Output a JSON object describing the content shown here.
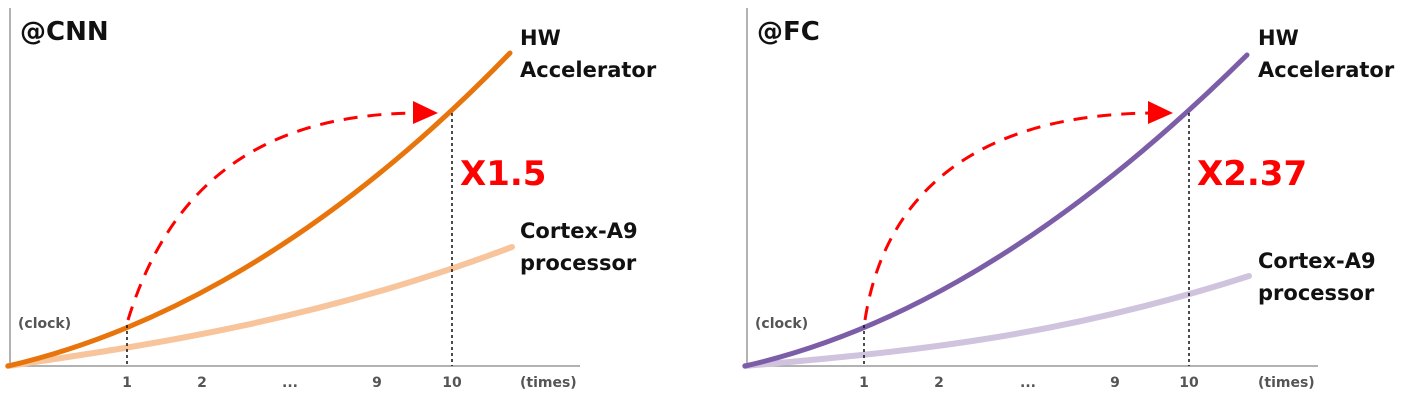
{
  "chart_data": [
    {
      "type": "line",
      "title": "@CNN",
      "ylabel": "(clock)",
      "xlabel": "(times)",
      "categories": [
        "1",
        "2",
        "...",
        "9",
        "10"
      ],
      "series": [
        {
          "name": "HW Accelerator",
          "label_lines": [
            "HW",
            "Accelerator"
          ],
          "color": "#e8740c"
        },
        {
          "name": "Cortex-A9 processor",
          "label_lines": [
            "Cortex-A9",
            "processor"
          ],
          "color": "#f7c49b"
        }
      ],
      "annotation": "X1.5",
      "annotation_color": "#ff0000"
    },
    {
      "type": "line",
      "title": "@FC",
      "ylabel": "(clock)",
      "xlabel": "(times)",
      "categories": [
        "1",
        "2",
        "...",
        "9",
        "10"
      ],
      "series": [
        {
          "name": "HW Accelerator",
          "label_lines": [
            "HW",
            "Accelerator"
          ],
          "color": "#7b5ea7"
        },
        {
          "name": "Cortex-A9 processor",
          "label_lines": [
            "Cortex-A9",
            "processor"
          ],
          "color": "#cfc3de"
        }
      ],
      "annotation": "X2.37",
      "annotation_color": "#ff0000"
    }
  ]
}
